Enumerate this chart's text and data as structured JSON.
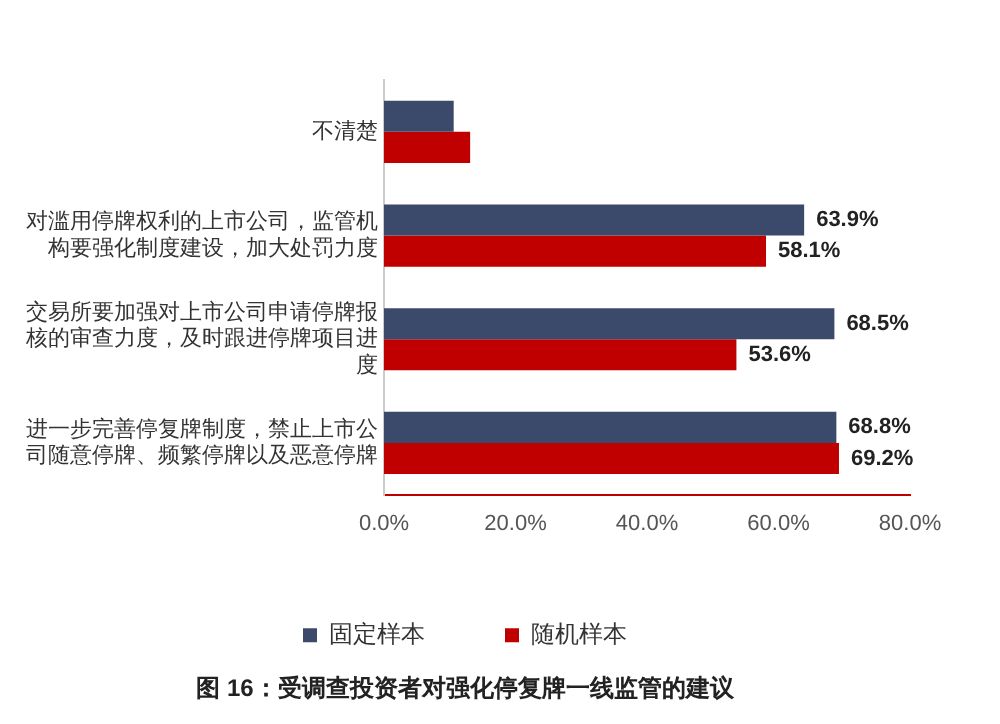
{
  "chart_data": {
    "type": "bar",
    "orientation": "horizontal",
    "title": "图 16：受调查投资者对强化停复牌一线监管的建议",
    "categories": [
      "不清楚",
      "对滥用停牌权利的上市公司，监管机构要强化制度建设，加大处罚力度",
      "交易所要加强对上市公司申请停牌报核的审查力度，及时跟进停牌项目进度",
      "进一步完善停复牌制度，禁止上市公司随意停牌、频繁停牌以及恶意停牌"
    ],
    "series": [
      {
        "name": "固定样本",
        "color": "#3b4a6b",
        "values": [
          10.6,
          63.9,
          68.5,
          68.8
        ],
        "value_labels": [
          null,
          "63.9%",
          "68.5%",
          "68.8%"
        ]
      },
      {
        "name": "随机样本",
        "color": "#c00000",
        "values": [
          13.1,
          58.1,
          53.6,
          69.2
        ],
        "value_labels": [
          null,
          "58.1%",
          "53.6%",
          "69.2%"
        ]
      }
    ],
    "xlim": [
      0,
      80
    ],
    "xticks": [
      {
        "value": 0,
        "label": "0.0%"
      },
      {
        "value": 20,
        "label": "20.0%"
      },
      {
        "value": 40,
        "label": "40.0%"
      },
      {
        "value": 60,
        "label": "60.0%"
      },
      {
        "value": 80,
        "label": "80.0%"
      }
    ],
    "grid": false,
    "legend": "bottom"
  }
}
